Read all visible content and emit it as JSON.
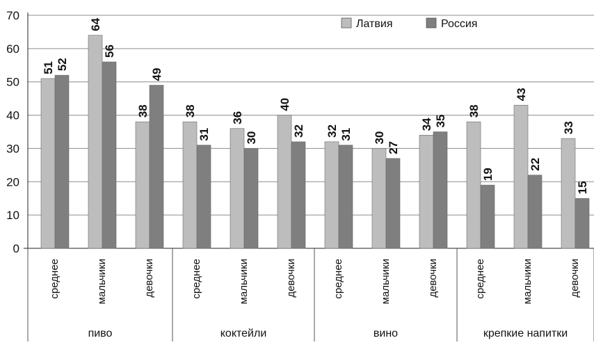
{
  "chart_data": {
    "type": "bar",
    "yticks": [
      "0",
      "10",
      "20",
      "30",
      "40",
      "50",
      "60",
      "70"
    ],
    "ylim": [
      0,
      70
    ],
    "grid": true,
    "legend_position": "top-right",
    "groups": [
      {
        "name": "пиво",
        "categories": [
          "среднее",
          "мальчики",
          "девочки"
        ]
      },
      {
        "name": "коктейли",
        "categories": [
          "среднее",
          "мальчики",
          "девочки"
        ]
      },
      {
        "name": "вино",
        "categories": [
          "среднее",
          "мальчики",
          "девочки"
        ]
      },
      {
        "name": "крепкие напитки",
        "categories": [
          "среднее",
          "мальчики",
          "девочки"
        ]
      }
    ],
    "series": [
      {
        "name": "Латвия",
        "color": "#bdbdbd",
        "values": [
          51,
          64,
          38,
          38,
          36,
          40,
          32,
          30,
          34,
          38,
          43,
          33
        ]
      },
      {
        "name": "Россия",
        "color": "#7f7f7f",
        "values": [
          52,
          56,
          49,
          31,
          30,
          32,
          31,
          27,
          35,
          19,
          22,
          15
        ]
      }
    ]
  }
}
